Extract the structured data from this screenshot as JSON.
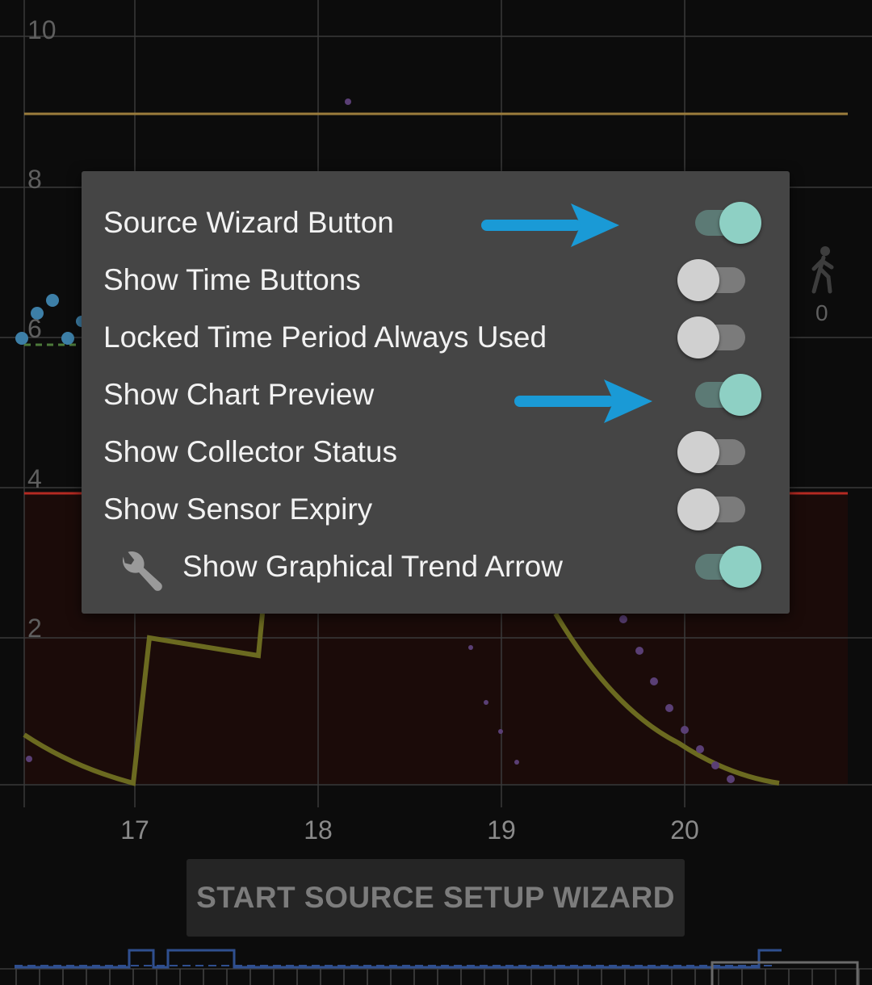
{
  "chart": {
    "y_ticks": [
      "10",
      "8",
      "6",
      "4",
      "2"
    ],
    "x_ticks": [
      "17",
      "18",
      "19",
      "20"
    ],
    "side_counter": "0"
  },
  "dialog": {
    "items": [
      {
        "label": "Source Wizard Button",
        "on": true,
        "highlighted": true
      },
      {
        "label": "Show Time Buttons",
        "on": false
      },
      {
        "label": "Locked Time Period Always Used",
        "on": false
      },
      {
        "label": "Show Chart Preview",
        "on": true,
        "highlighted": true
      },
      {
        "label": "Show Collector Status",
        "on": false
      },
      {
        "label": "Show Sensor Expiry",
        "on": false
      },
      {
        "label": "Show Graphical Trend Arrow",
        "on": true,
        "icon": "wrench-icon"
      }
    ]
  },
  "wizard_button": {
    "label": "START SOURCE SETUP WIZARD"
  },
  "colors": {
    "accent_on": "#8ed0c4",
    "arrow": "#1a9ad6",
    "high_line": "#9b7d3c",
    "low_line": "#b52a22"
  }
}
